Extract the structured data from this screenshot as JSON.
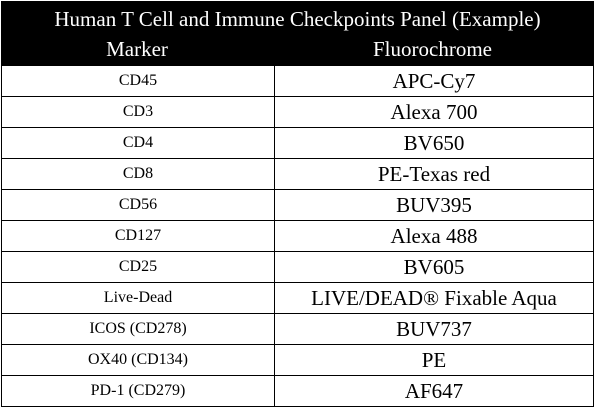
{
  "title": "Human T Cell and Immune Checkpoints Panel (Example)",
  "columns": {
    "marker": "Marker",
    "fluorochrome": "Fluorochrome"
  },
  "rows": [
    {
      "marker": "CD45",
      "fluorochrome": "APC-Cy7"
    },
    {
      "marker": "CD3",
      "fluorochrome": "Alexa 700"
    },
    {
      "marker": "CD4",
      "fluorochrome": "BV650"
    },
    {
      "marker": "CD8",
      "fluorochrome": "PE-Texas red"
    },
    {
      "marker": "CD56",
      "fluorochrome": "BUV395"
    },
    {
      "marker": "CD127",
      "fluorochrome": "Alexa 488"
    },
    {
      "marker": "CD25",
      "fluorochrome": "BV605"
    },
    {
      "marker": "Live-Dead",
      "fluorochrome": "LIVE/DEAD® Fixable Aqua"
    },
    {
      "marker": "ICOS (CD278)",
      "fluorochrome": "BUV737"
    },
    {
      "marker": "OX40 (CD134)",
      "fluorochrome": "PE"
    },
    {
      "marker": "PD-1 (CD279)",
      "fluorochrome": "AF647"
    }
  ]
}
